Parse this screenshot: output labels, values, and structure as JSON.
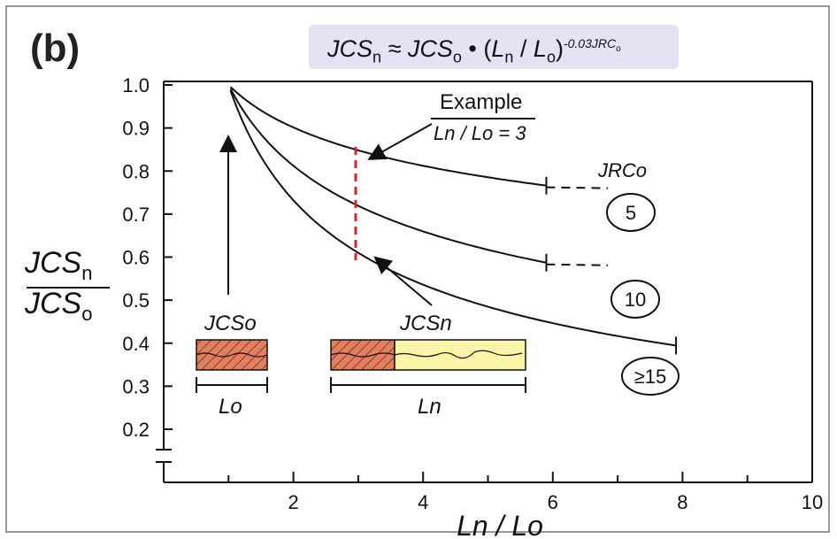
{
  "panel_label": "(b)",
  "formula": {
    "lhs": "JCS",
    "lhs_sub": "n",
    "approx": " ≈ ",
    "mid": "JCS",
    "mid_sub": "o",
    "dot": " • (",
    "ln": "L",
    "ln_sub": "n",
    "slash": " / ",
    "lo": "L",
    "lo_sub": "o",
    "close": ")",
    "exponent": "-0.03JRC",
    "exponent_sub": "o"
  },
  "colors": {
    "axis": "#111111",
    "curve": "#111111",
    "example_line": "#e0202a",
    "hatch_fill": "#e08060",
    "hatch_line": "#8a3a22",
    "yellow_fill": "#fbf5a8",
    "formula_bg": "#e5e3f3"
  },
  "chart_data": {
    "type": "line",
    "xlabel": "Ln / Lo",
    "ylabel": "JCSn / JCSo",
    "xlim": [
      0,
      10
    ],
    "ylim": [
      0.15,
      1.0
    ],
    "axis_break_y": true,
    "x_ticks": [
      2,
      4,
      6,
      8,
      10
    ],
    "x_minor_ticks": [
      1,
      3,
      5,
      7,
      9
    ],
    "y_ticks": [
      "1.0",
      "0.9",
      "0.8",
      "0.7",
      "0.6",
      "0.5",
      "0.4",
      "0.3",
      "0.2"
    ],
    "y_tick_values": [
      1.0,
      0.9,
      0.8,
      0.7,
      0.6,
      0.5,
      0.4,
      0.3,
      0.2
    ],
    "legend_title": "JRCo",
    "series": [
      {
        "name": "5",
        "jrc": 5,
        "x_end": 5.9,
        "y_end": 0.69,
        "dashed_to_x": 6.85
      },
      {
        "name": "10",
        "jrc": 10,
        "x_end": 5.9,
        "y_end": 0.5,
        "dashed_to_x": 6.85
      },
      {
        "name": "≥15",
        "jrc": 15,
        "x_end": 7.9,
        "y_end": 0.37,
        "dashed_to_x": null
      }
    ],
    "annotations": {
      "example_title": "Example",
      "example_formula": "Ln / Lo = 3",
      "example_x": 3,
      "jcs_o_label": "JCSo",
      "jcs_n_label": "JCSn",
      "l_o_label": "Lo",
      "l_n_label": "Ln"
    }
  }
}
